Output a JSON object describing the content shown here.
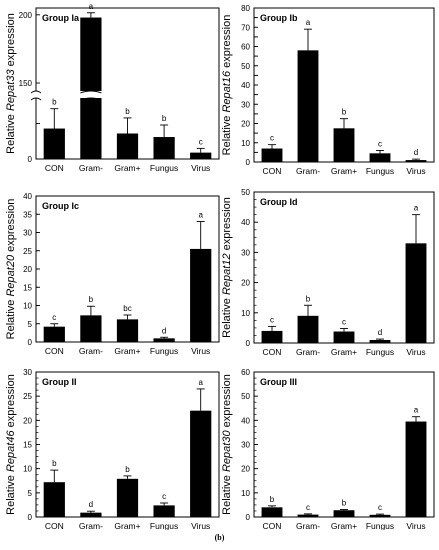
{
  "caption": "(b)",
  "chart_data": [
    {
      "type": "bar",
      "title": "Group Ia",
      "ylabel_prefix": "Relative ",
      "ylabel_gene": "Repat33",
      "ylabel_suffix": " expression",
      "categories": [
        "CON",
        "Gram-",
        "Gram+",
        "Fungus",
        "Virus"
      ],
      "values": [
        4.3,
        198,
        3.6,
        3.1,
        0.9
      ],
      "errors": [
        2.8,
        3.5,
        2.2,
        1.7,
        0.6
      ],
      "letters": [
        "b",
        "a",
        "b",
        "b",
        "c"
      ],
      "axis_break": true,
      "ylim": [
        0,
        205
      ],
      "yticks": [
        0,
        5,
        150,
        200
      ]
    },
    {
      "type": "bar",
      "title": "Group Ib",
      "ylabel_prefix": "Relative ",
      "ylabel_gene": "Repat16",
      "ylabel_suffix": " expression",
      "categories": [
        "CON",
        "Gram-",
        "Gram+",
        "Fungus",
        "Virus"
      ],
      "values": [
        7,
        58,
        17.5,
        4.5,
        1
      ],
      "errors": [
        2,
        11,
        5,
        1.5,
        0.5
      ],
      "letters": [
        "c",
        "a",
        "b",
        "c",
        "d"
      ],
      "ylim": [
        0,
        80
      ],
      "yticks": [
        0,
        5,
        10,
        15,
        20,
        25,
        30,
        35,
        40,
        45,
        50,
        55,
        60,
        65,
        70,
        75,
        80
      ]
    },
    {
      "type": "bar",
      "title": "Group Ic",
      "ylabel_prefix": "Relative ",
      "ylabel_gene": "Repat20",
      "ylabel_suffix": " expression",
      "categories": [
        "CON",
        "Gram-",
        "Gram+",
        "Fungus",
        "Virus"
      ],
      "values": [
        4.2,
        7.3,
        6.2,
        1,
        25.5
      ],
      "errors": [
        0.8,
        2.5,
        1.2,
        0.3,
        7.5
      ],
      "letters": [
        "c",
        "b",
        "bc",
        "d",
        "a"
      ],
      "ylim": [
        0,
        40
      ],
      "yticks": [
        0,
        5,
        10,
        15,
        20,
        25,
        30,
        35,
        40
      ]
    },
    {
      "type": "bar",
      "title": "Group Id",
      "ylabel_prefix": "Relative ",
      "ylabel_gene": "Repat12",
      "ylabel_suffix": " expression",
      "categories": [
        "CON",
        "Gram-",
        "Gram+",
        "Fungus",
        "Virus"
      ],
      "values": [
        4,
        9,
        3.8,
        1,
        33
      ],
      "errors": [
        1.5,
        3.5,
        1,
        0.3,
        9.5
      ],
      "letters": [
        "c",
        "b",
        "c",
        "d",
        "a"
      ],
      "ylim": [
        0,
        50
      ],
      "yticks": [
        0,
        10,
        20,
        30,
        40,
        50
      ]
    },
    {
      "type": "bar",
      "title": "Group II",
      "ylabel_prefix": "Relative ",
      "ylabel_gene": "Repat46",
      "ylabel_suffix": " expression",
      "categories": [
        "CON",
        "Gram-",
        "Gram+",
        "Fungus",
        "Virus"
      ],
      "values": [
        7.2,
        0.9,
        7.9,
        2.4,
        22
      ],
      "errors": [
        2.5,
        0.3,
        0.6,
        0.5,
        4.5
      ],
      "letters": [
        "b",
        "d",
        "b",
        "c",
        "a"
      ],
      "ylim": [
        0,
        30
      ],
      "yticks": [
        0,
        5,
        10,
        15,
        20,
        25,
        30
      ]
    },
    {
      "type": "bar",
      "title": "Group III",
      "ylabel_prefix": "Relative ",
      "ylabel_gene": "Repat30",
      "ylabel_suffix": " expression",
      "categories": [
        "CON",
        "Gram-",
        "Gram+",
        "Fungus",
        "Virus"
      ],
      "values": [
        4,
        1,
        2.8,
        0.9,
        39.5
      ],
      "errors": [
        0.6,
        0.3,
        0.3,
        0.3,
        2
      ],
      "letters": [
        "b",
        "c",
        "b",
        "c",
        "a"
      ],
      "ylim": [
        0,
        60
      ],
      "yticks": [
        0,
        10,
        20,
        30,
        40,
        50,
        60
      ]
    }
  ]
}
